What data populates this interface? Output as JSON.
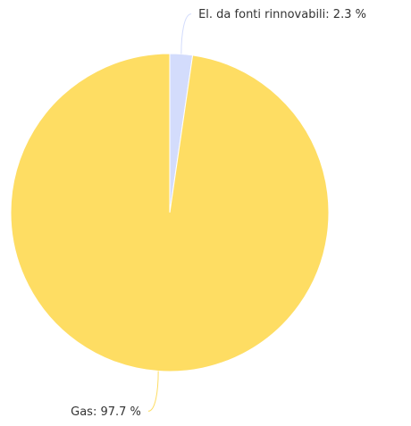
{
  "chart_data": {
    "type": "pie",
    "categories": [
      "El. da fonti rinnovabili",
      "Gas"
    ],
    "values": [
      2.3,
      97.7
    ],
    "value_labels": [
      "El. da fonti rinnovabili: 2.3 %",
      "Gas: 97.7 %"
    ],
    "colors": [
      "#d3dcfc",
      "#fedd63"
    ]
  }
}
